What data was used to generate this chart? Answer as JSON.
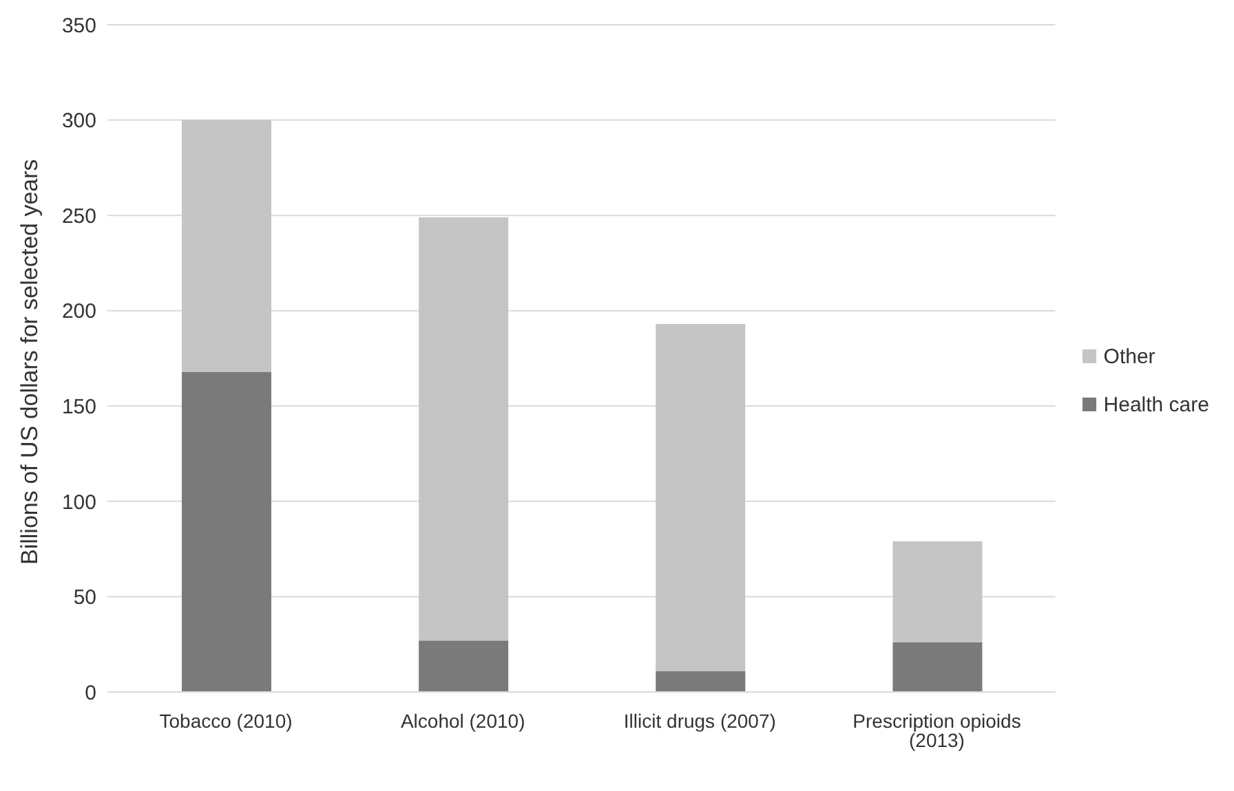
{
  "chart_data": {
    "type": "bar",
    "stacked": true,
    "ylabel": "Billions of US dollars for selected years",
    "categories": [
      "Tobacco (2010)",
      "Alcohol (2010)",
      "Illicit drugs (2007)",
      "Prescription opioids (2013)"
    ],
    "series": [
      {
        "name": "Health care",
        "color": "#7a7a7a",
        "values": [
          168,
          27,
          11,
          26
        ]
      },
      {
        "name": "Other",
        "color": "#c4c5c4",
        "values": [
          132,
          222,
          182,
          53
        ]
      }
    ],
    "ylim": [
      0,
      350
    ],
    "yticks": [
      0,
      50,
      100,
      150,
      200,
      250,
      300,
      350
    ],
    "grid": "y",
    "legend": "right"
  }
}
